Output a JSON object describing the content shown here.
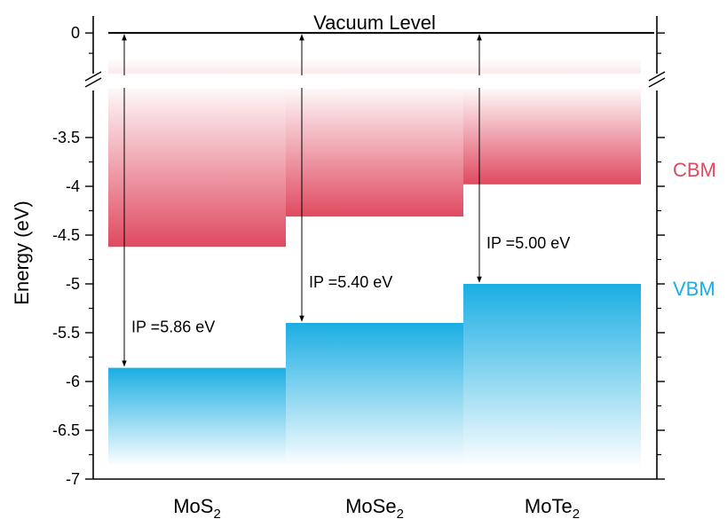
{
  "chart_data": {
    "type": "bar",
    "ylabel": "Energy (eV)",
    "yticks_upper": [
      {
        "value": 0,
        "label": "0"
      }
    ],
    "yticks_lower": [
      {
        "value": -3.5,
        "label": "-3.5"
      },
      {
        "value": -4,
        "label": "-4"
      },
      {
        "value": -4.5,
        "label": "-4.5"
      },
      {
        "value": -5,
        "label": "-5"
      },
      {
        "value": -5.5,
        "label": "-5.5"
      },
      {
        "value": -6,
        "label": "-6"
      },
      {
        "value": -6.5,
        "label": "-6.5"
      },
      {
        "value": -7,
        "label": "-7"
      }
    ],
    "ylim_lower": [
      -7,
      -3
    ],
    "ylim_upper": [
      -0.5,
      0.1
    ],
    "axis_break": true,
    "vacuum_level": {
      "value": 0,
      "label": "Vacuum Level"
    },
    "materials": [
      {
        "base": "MoS",
        "sub": "2",
        "cbm": -4.62,
        "vbm": -5.86,
        "ip_label": "IP =5.86 eV"
      },
      {
        "base": "MoSe",
        "sub": "2",
        "cbm": -4.31,
        "vbm": -5.4,
        "ip_label": "IP =5.40 eV"
      },
      {
        "base": "MoTe",
        "sub": "2",
        "cbm": -3.98,
        "vbm": -5.0,
        "ip_label": "IP =5.00 eV"
      }
    ],
    "band_labels": {
      "cbm": "CBM",
      "vbm": "VBM"
    },
    "colors": {
      "cbm": "#e04a60",
      "vbm": "#1aaee3",
      "axis": "#000000"
    }
  }
}
